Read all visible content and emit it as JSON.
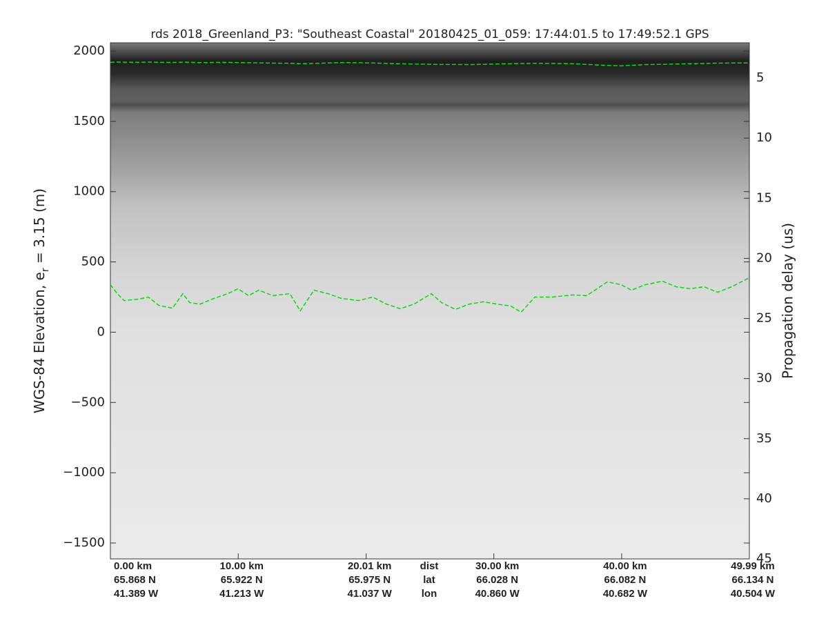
{
  "chart_data": {
    "type": "line",
    "title": "rds 2018_Greenland_P3: \"Southeast Coastal\"  20180425_01_059: 17:44:01.5 to 17:49:52.1 GPS",
    "ylabel": [
      "WGS-84 Elevation, e",
      "r",
      " = 3.15 (m)"
    ],
    "y2label": "Propagation delay (us)",
    "row_labels": [
      "dist",
      "lat",
      "lon"
    ],
    "xlim": [
      0,
      49.99
    ],
    "xticks": [
      {
        "value": 0,
        "label": "0.00 km"
      },
      {
        "value": 10,
        "label": "10.00 km"
      },
      {
        "value": 20.01,
        "label": "20.01 km"
      },
      {
        "value": 30,
        "label": "30.00 km"
      },
      {
        "value": 40,
        "label": "40.00 km"
      },
      {
        "value": 49.99,
        "label": "49.99 km"
      }
    ],
    "lat": [
      "65.868 N",
      "65.922 N",
      "65.975 N",
      "66.028 N",
      "66.082 N",
      "66.134 N"
    ],
    "lon": [
      "41.389 W",
      "41.213 W",
      "41.037 W",
      "40.860 W",
      "40.682 W",
      "40.504 W"
    ],
    "ylim": [
      -1613,
      2059
    ],
    "yticks": [
      {
        "value": -1500,
        "label": "−1500"
      },
      {
        "value": -1000,
        "label": "−1000"
      },
      {
        "value": -500,
        "label": "−500"
      },
      0,
      500,
      1000,
      1500,
      2000
    ],
    "y2lim": [
      45,
      2.07
    ],
    "y2ticks": [
      5,
      10,
      15,
      20,
      25,
      30,
      35,
      40,
      45
    ],
    "x": [
      0,
      0.54,
      1.08,
      2.16,
      2.97,
      3.78,
      4.86,
      5.67,
      6.21,
      7.02,
      8.1,
      9.18,
      9.99,
      10.8,
      11.61,
      12.69,
      14.04,
      14.85,
      15.93,
      17.01,
      18.09,
      19.44,
      20.52,
      21.6,
      22.68,
      23.76,
      25.11,
      25.92,
      27,
      28.08,
      29.16,
      30.24,
      31.32,
      32.13,
      33.21,
      34.56,
      36.18,
      37.26,
      38.88,
      39.96,
      40.77,
      41.85,
      43.2,
      44.28,
      45.36,
      46.44,
      47.52,
      48.6,
      49.99
    ],
    "series": [
      {
        "color": "#00e000",
        "dashed": true,
        "values": [
          1920,
          1922,
          1921,
          1920,
          1922,
          1920,
          1919,
          1921,
          1920,
          1918,
          1919,
          1920,
          1918,
          1917,
          1916,
          1914,
          1913,
          1910,
          1912,
          1915,
          1918,
          1917,
          1915,
          1912,
          1910,
          1908,
          1906,
          1905,
          1905,
          1904,
          1906,
          1908,
          1910,
          1912,
          1913,
          1912,
          1910,
          1905,
          1898,
          1895,
          1899,
          1904,
          1906,
          1908,
          1910,
          1912,
          1914,
          1915,
          1915
        ]
      },
      {
        "color": "#00e000",
        "dashed": true,
        "values": [
          338,
          274,
          225,
          235,
          250,
          191,
          171,
          274,
          210,
          200,
          240,
          274,
          309,
          260,
          299,
          260,
          274,
          152,
          299,
          274,
          240,
          225,
          250,
          200,
          167,
          200,
          274,
          210,
          162,
          200,
          216,
          200,
          186,
          142,
          250,
          250,
          265,
          260,
          358,
          338,
          299,
          338,
          363,
          323,
          309,
          323,
          284,
          323,
          387
        ]
      }
    ]
  }
}
